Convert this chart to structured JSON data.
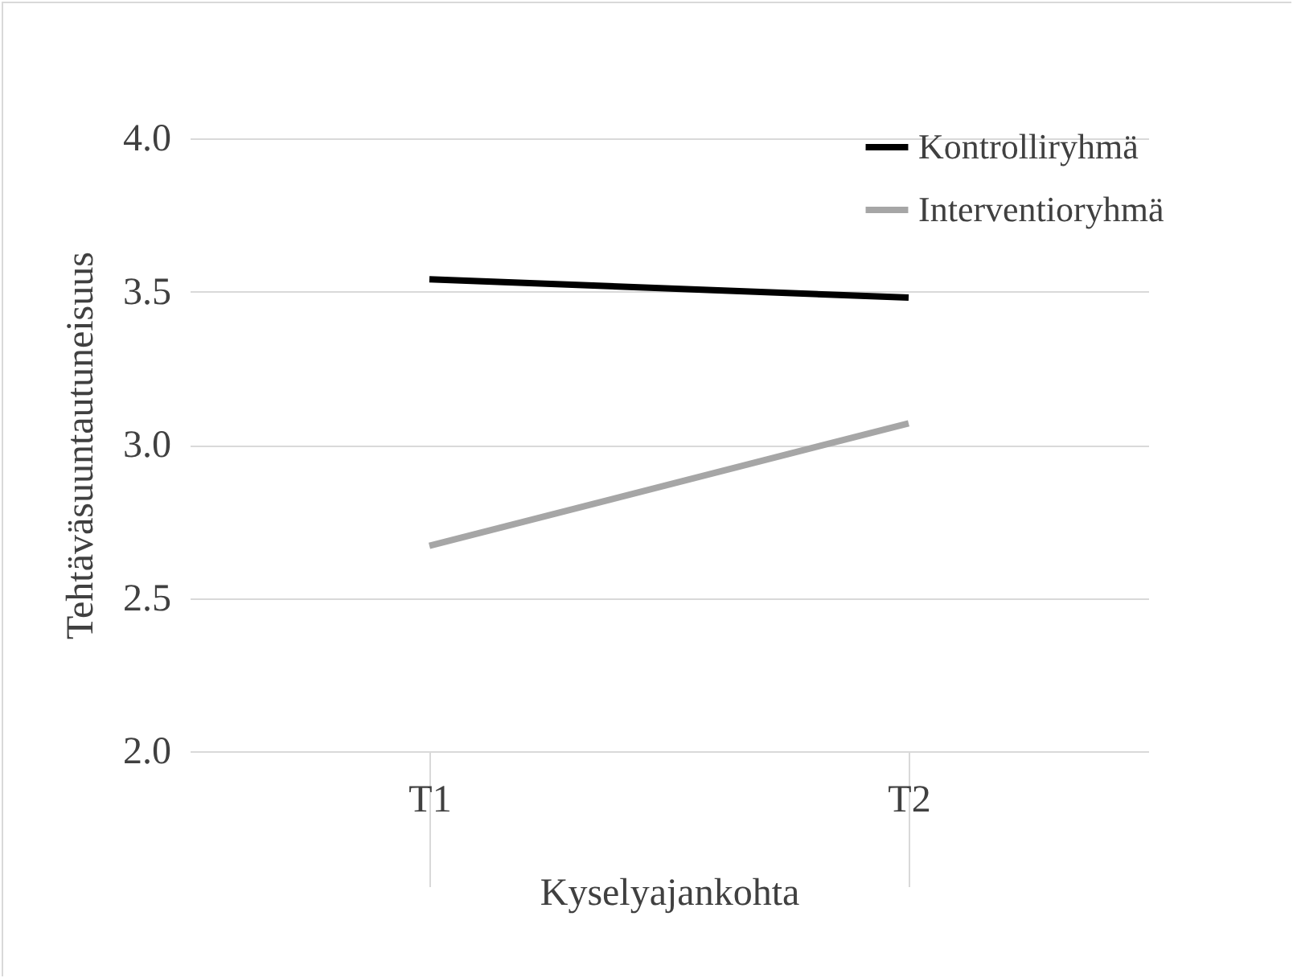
{
  "chart_data": {
    "type": "line",
    "xlabel": "Kyselyajankohta",
    "ylabel": "Tehtäväsuuntautuneisuus",
    "categories": [
      "T1",
      "T2"
    ],
    "series": [
      {
        "name": "Kontrolliryhmä",
        "color": "#000000",
        "values": [
          3.54,
          3.48
        ]
      },
      {
        "name": "Interventioryhmä",
        "color": "#a6a6a6",
        "values": [
          2.67,
          3.07
        ]
      }
    ],
    "ylim": [
      2.0,
      4.0
    ],
    "yticks": [
      {
        "value": 2.0,
        "label": "2.0"
      },
      {
        "value": 2.5,
        "label": "2.5"
      },
      {
        "value": 3.0,
        "label": "3.0"
      },
      {
        "value": 3.5,
        "label": "3.5"
      },
      {
        "value": 4.0,
        "label": "4.0"
      }
    ],
    "grid": "y",
    "legend": "top right",
    "marker": "none",
    "line_style": "solid"
  }
}
